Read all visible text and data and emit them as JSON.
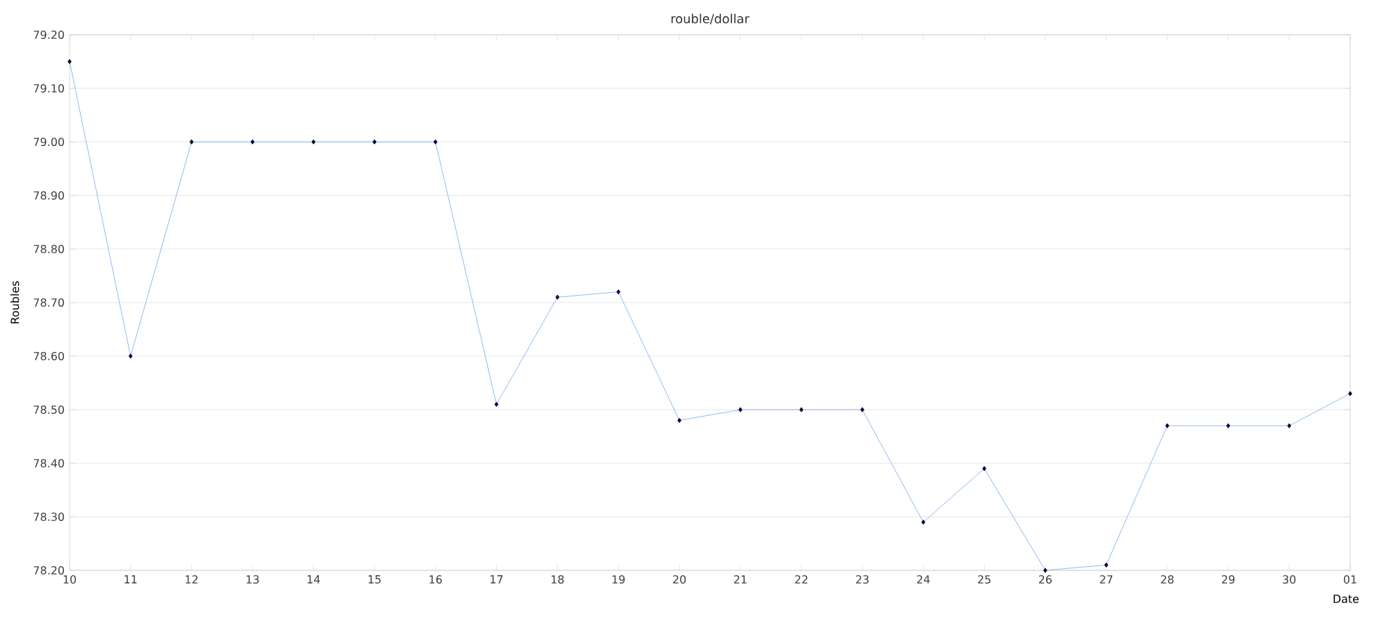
{
  "chart_data": {
    "type": "line",
    "title": "rouble/dollar",
    "xlabel": "Date",
    "ylabel": "Roubles",
    "categories": [
      "10",
      "11",
      "12",
      "13",
      "14",
      "15",
      "16",
      "17",
      "18",
      "19",
      "20",
      "21",
      "22",
      "23",
      "24",
      "25",
      "26",
      "27",
      "28",
      "29",
      "30",
      "01"
    ],
    "values": [
      79.15,
      78.6,
      79.0,
      79.0,
      79.0,
      79.0,
      79.0,
      78.51,
      78.71,
      78.72,
      78.48,
      78.5,
      78.5,
      78.5,
      78.29,
      78.39,
      78.2,
      78.21,
      78.47,
      78.47,
      78.47,
      78.53
    ],
    "color": "#6fa8ec",
    "marker": "diamond",
    "line_style": "solid",
    "grid": "y",
    "ylim": [
      78.2,
      79.2
    ],
    "yticks": [
      {
        "value": 78.2,
        "label": "78.20"
      },
      {
        "value": 78.3,
        "label": "78.30"
      },
      {
        "value": 78.4,
        "label": "78.40"
      },
      {
        "value": 78.5,
        "label": "78.50"
      },
      {
        "value": 78.6,
        "label": "78.60"
      },
      {
        "value": 78.7,
        "label": "78.70"
      },
      {
        "value": 78.8,
        "label": "78.80"
      },
      {
        "value": 78.9,
        "label": "78.90"
      },
      {
        "value": 79.0,
        "label": "79.00"
      },
      {
        "value": 79.1,
        "label": "79.10"
      },
      {
        "value": 79.2,
        "label": "79.20"
      }
    ]
  }
}
